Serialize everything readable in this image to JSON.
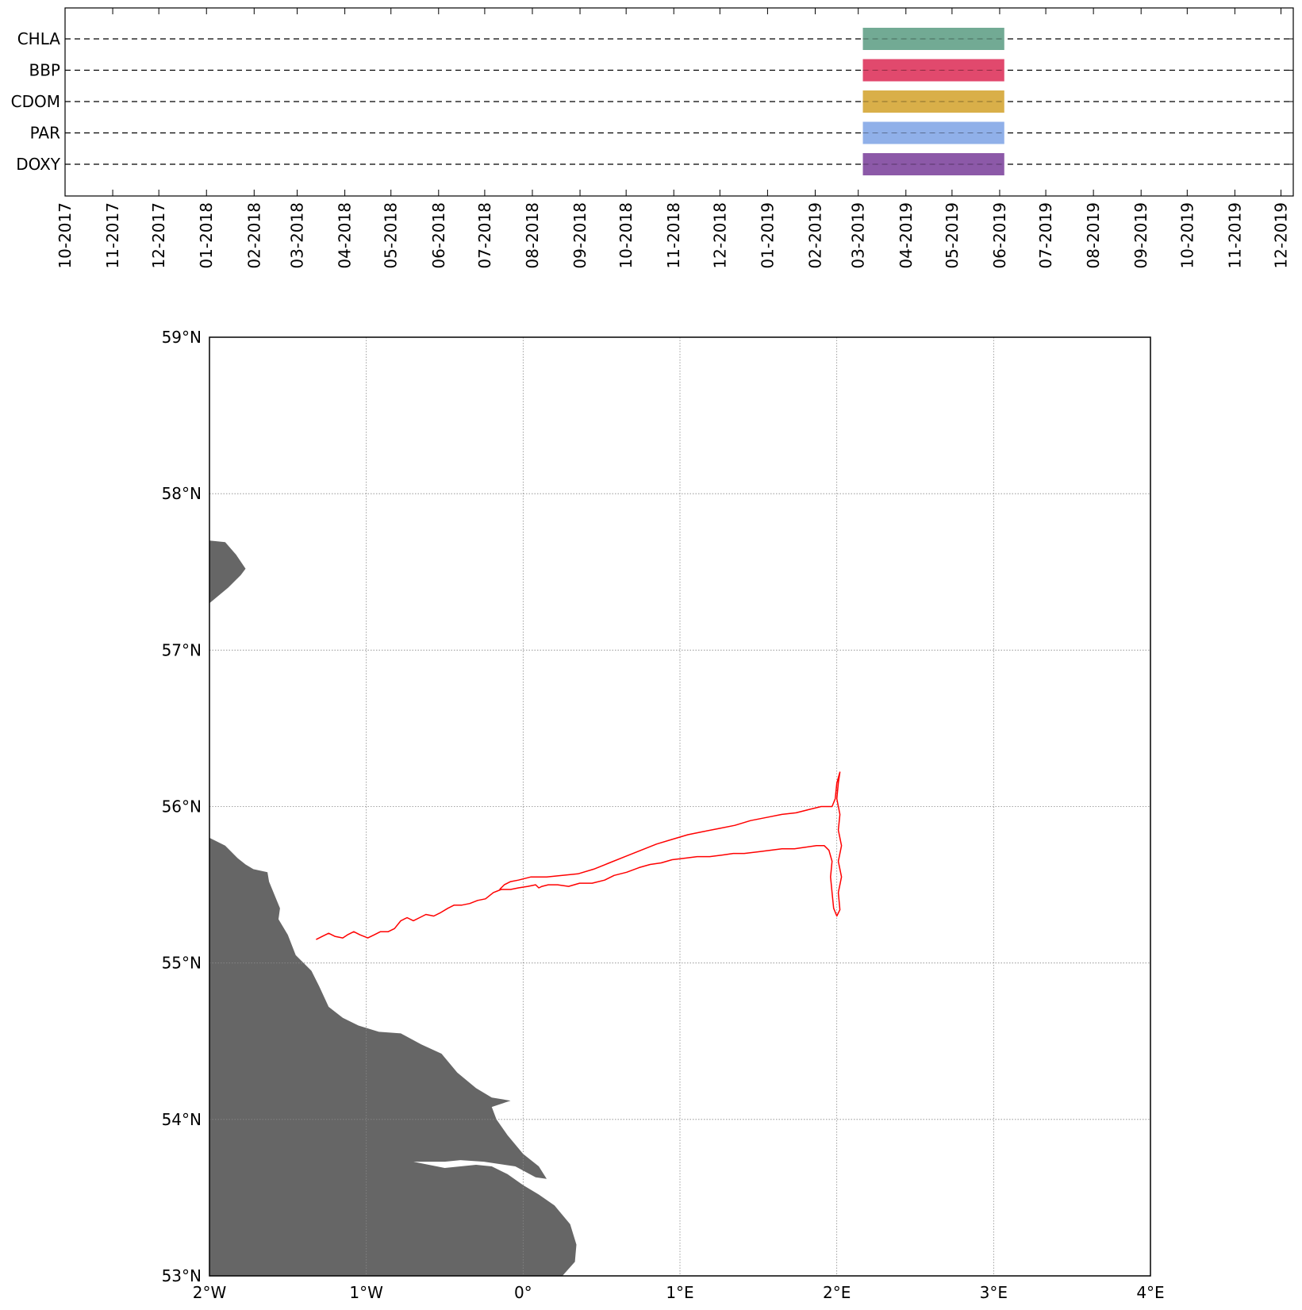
{
  "chart_data": [
    {
      "type": "gantt",
      "categories": [
        "CHLA",
        "BBP",
        "CDOM",
        "PAR",
        "DOXY"
      ],
      "x_tick_labels": [
        "10-2017",
        "11-2017",
        "12-2017",
        "01-2018",
        "02-2018",
        "03-2018",
        "04-2018",
        "05-2018",
        "06-2018",
        "07-2018",
        "08-2018",
        "09-2018",
        "10-2018",
        "11-2018",
        "12-2018",
        "01-2019",
        "02-2019",
        "03-2019",
        "04-2019",
        "05-2019",
        "06-2019",
        "07-2019",
        "08-2019",
        "09-2019",
        "10-2019",
        "11-2019",
        "12-2019"
      ],
      "xlim": [
        "2017-10-01",
        "2019-12-09"
      ],
      "bars": [
        {
          "name": "CHLA",
          "start": "2019-03-04",
          "end": "2019-06-04",
          "color": "#6fa892"
        },
        {
          "name": "BBP",
          "start": "2019-03-04",
          "end": "2019-06-04",
          "color": "#e0456a"
        },
        {
          "name": "CDOM",
          "start": "2019-03-04",
          "end": "2019-06-04",
          "color": "#d8ad45"
        },
        {
          "name": "PAR",
          "start": "2019-03-04",
          "end": "2019-06-04",
          "color": "#8eaee9"
        },
        {
          "name": "DOXY",
          "start": "2019-03-04",
          "end": "2019-06-04",
          "color": "#8a56a6"
        }
      ],
      "grid": "dashed horizontal lines"
    },
    {
      "type": "map",
      "xlim": [
        -2,
        4
      ],
      "ylim": [
        53,
        59
      ],
      "x_tick_labels": [
        "2°W",
        "1°W",
        "0°",
        "1°E",
        "2°E",
        "3°E",
        "4°E"
      ],
      "y_tick_labels": [
        "53°N",
        "54°N",
        "55°N",
        "56°N",
        "57°N",
        "58°N",
        "59°N"
      ],
      "grid": "dotted",
      "land_color": "#666666",
      "track_color": "#ff0000",
      "track": [
        [
          -1.32,
          55.15
        ],
        [
          -1.28,
          55.17
        ],
        [
          -1.24,
          55.19
        ],
        [
          -1.2,
          55.17
        ],
        [
          -1.15,
          55.16
        ],
        [
          -1.12,
          55.18
        ],
        [
          -1.08,
          55.2
        ],
        [
          -1.04,
          55.18
        ],
        [
          -0.99,
          55.16
        ],
        [
          -0.95,
          55.18
        ],
        [
          -0.91,
          55.2
        ],
        [
          -0.86,
          55.2
        ],
        [
          -0.82,
          55.22
        ],
        [
          -0.78,
          55.27
        ],
        [
          -0.74,
          55.29
        ],
        [
          -0.7,
          55.27
        ],
        [
          -0.66,
          55.29
        ],
        [
          -0.62,
          55.31
        ],
        [
          -0.57,
          55.3
        ],
        [
          -0.53,
          55.32
        ],
        [
          -0.48,
          55.35
        ],
        [
          -0.44,
          55.37
        ],
        [
          -0.39,
          55.37
        ],
        [
          -0.34,
          55.38
        ],
        [
          -0.29,
          55.4
        ],
        [
          -0.24,
          55.41
        ],
        [
          -0.19,
          55.45
        ],
        [
          -0.14,
          55.47
        ],
        [
          -0.08,
          55.47
        ],
        [
          -0.03,
          55.48
        ],
        [
          0.03,
          55.49
        ],
        [
          0.08,
          55.5
        ],
        [
          0.1,
          55.48
        ],
        [
          0.12,
          55.49
        ],
        [
          0.16,
          55.5
        ],
        [
          0.22,
          55.5
        ],
        [
          0.29,
          55.49
        ],
        [
          0.36,
          55.51
        ],
        [
          0.44,
          55.51
        ],
        [
          0.52,
          55.53
        ],
        [
          0.58,
          55.56
        ],
        [
          0.66,
          55.58
        ],
        [
          0.74,
          55.61
        ],
        [
          0.81,
          55.63
        ],
        [
          0.88,
          55.64
        ],
        [
          0.95,
          55.66
        ],
        [
          1.03,
          55.67
        ],
        [
          1.11,
          55.68
        ],
        [
          1.19,
          55.68
        ],
        [
          1.27,
          55.69
        ],
        [
          1.34,
          55.7
        ],
        [
          1.41,
          55.7
        ],
        [
          1.49,
          55.71
        ],
        [
          1.57,
          55.72
        ],
        [
          1.65,
          55.73
        ],
        [
          1.73,
          55.73
        ],
        [
          1.8,
          55.74
        ],
        [
          1.87,
          55.75
        ],
        [
          1.92,
          55.75
        ],
        [
          1.95,
          55.72
        ],
        [
          1.97,
          55.65
        ],
        [
          1.96,
          55.55
        ],
        [
          1.97,
          55.45
        ],
        [
          1.98,
          55.35
        ],
        [
          2.0,
          55.3
        ],
        [
          2.02,
          55.34
        ],
        [
          2.01,
          55.45
        ],
        [
          2.03,
          55.55
        ],
        [
          2.01,
          55.65
        ],
        [
          2.03,
          55.75
        ],
        [
          2.01,
          55.85
        ],
        [
          2.02,
          55.95
        ],
        [
          2.0,
          56.05
        ],
        [
          2.01,
          56.15
        ],
        [
          2.02,
          56.22
        ],
        [
          2.0,
          56.15
        ],
        [
          1.99,
          56.05
        ],
        [
          1.97,
          56.0
        ],
        [
          1.9,
          56.0
        ],
        [
          1.82,
          55.98
        ],
        [
          1.74,
          55.96
        ],
        [
          1.65,
          55.95
        ],
        [
          1.55,
          55.93
        ],
        [
          1.45,
          55.91
        ],
        [
          1.35,
          55.88
        ],
        [
          1.25,
          55.86
        ],
        [
          1.15,
          55.84
        ],
        [
          1.05,
          55.82
        ],
        [
          0.95,
          55.79
        ],
        [
          0.85,
          55.76
        ],
        [
          0.75,
          55.72
        ],
        [
          0.65,
          55.68
        ],
        [
          0.55,
          55.64
        ],
        [
          0.45,
          55.6
        ],
        [
          0.35,
          55.57
        ],
        [
          0.25,
          55.56
        ],
        [
          0.15,
          55.55
        ],
        [
          0.05,
          55.55
        ],
        [
          -0.03,
          55.53
        ],
        [
          -0.08,
          55.52
        ],
        [
          -0.12,
          55.5
        ],
        [
          -0.15,
          55.47
        ]
      ]
    }
  ]
}
